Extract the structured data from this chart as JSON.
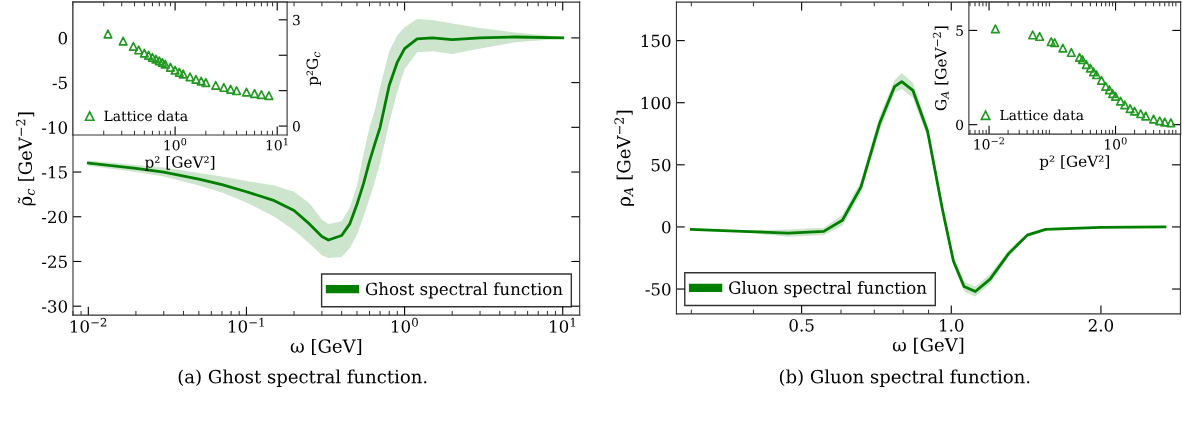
{
  "chart_data": [
    {
      "type": "line",
      "xlabel": "ω [GeV]",
      "ylabel": "ρ̃$_{c}$ [GeV$^{−2}$]",
      "log": "x",
      "xlim": [
        0.008,
        12.8
      ],
      "ylim": [
        -31,
        4
      ],
      "xticks": [
        {
          "value": 0.01,
          "label": "10$^{−2}$"
        },
        {
          "value": 0.1,
          "label": "10$^{−1}$"
        },
        {
          "value": 1,
          "label": "10$^{0}$"
        },
        {
          "value": 10,
          "label": "10$^{1}$"
        }
      ],
      "yticks": [
        -30,
        -25,
        -20,
        -15,
        -10,
        -5,
        0
      ],
      "grid": false,
      "legend": "bottom right",
      "annotations": [
        "(a) Ghost spectral function."
      ],
      "series": [
        {
          "name": "Ghost spectral function",
          "type": "line",
          "color": "#007f00",
          "x": [
            0.01,
            0.02,
            0.03,
            0.05,
            0.07,
            0.1,
            0.15,
            0.2,
            0.25,
            0.3,
            0.33,
            0.4,
            0.45,
            0.5,
            0.55,
            0.6,
            0.65,
            0.7,
            0.8,
            0.9,
            1.0,
            1.2,
            1.5,
            2,
            3,
            5,
            10
          ],
          "values": [
            -14,
            -14.6,
            -15.0,
            -15.8,
            -16.4,
            -17.2,
            -18.2,
            -19.3,
            -20.8,
            -22.2,
            -22.6,
            -22.1,
            -20.8,
            -18.6,
            -16.3,
            -13.8,
            -11.8,
            -10,
            -5.3,
            -2.7,
            -1.2,
            -0.1,
            0,
            -0.2,
            0,
            0.1,
            0
          ],
          "lower": [
            -14.3,
            -15.0,
            -15.5,
            -16.5,
            -17.3,
            -18.4,
            -20.0,
            -21.5,
            -23.0,
            -24.3,
            -24.6,
            -24.5,
            -23.5,
            -22,
            -20,
            -18,
            -16,
            -14,
            -9.5,
            -6,
            -3.5,
            -1.6,
            -1.5,
            -1.8,
            -1.2,
            -0.5,
            -0.1
          ],
          "upper": [
            -13.7,
            -14.2,
            -14.5,
            -15.1,
            -15.5,
            -16.0,
            -16.5,
            -17.2,
            -18.5,
            -20.3,
            -20.8,
            -20.5,
            -19,
            -16.5,
            -13,
            -10,
            -8,
            -5.5,
            -1.5,
            0.3,
            1.2,
            2.1,
            2.0,
            1.6,
            1.1,
            0.6,
            0.1
          ]
        }
      ]
    },
    {
      "type": "scatter",
      "xlabel": "p² [GeV²]",
      "y2label": "p²G$_{c}$",
      "log": "x",
      "xlim": [
        0.1,
        12.5
      ],
      "y2lim": [
        -0.25,
        3.5
      ],
      "xticks": [
        {
          "value": 1,
          "label": "10$^{0}$"
        },
        {
          "value": 10,
          "label": "10$^{1}$"
        }
      ],
      "y2ticks": [
        0,
        {
          "value": 1,
          "label": null
        },
        {
          "value": 2,
          "label": null
        },
        3
      ],
      "grid": false,
      "legend": "bottom left",
      "marker": "triangle",
      "series": [
        {
          "name": "Lattice data",
          "type": "scatter",
          "axis": "y2",
          "color": "#229a22",
          "x": [
            0.22,
            0.31,
            0.39,
            0.44,
            0.5,
            0.55,
            0.6,
            0.65,
            0.7,
            0.75,
            0.8,
            0.9,
            1.0,
            1.1,
            1.2,
            1.4,
            1.6,
            1.8,
            2.0,
            2.5,
            3.0,
            3.5,
            4.0,
            5.0,
            6.0,
            7.0,
            8.3
          ],
          "values": [
            2.6,
            2.4,
            2.25,
            2.15,
            2.06,
            2.0,
            1.94,
            1.89,
            1.84,
            1.8,
            1.75,
            1.66,
            1.58,
            1.52,
            1.47,
            1.39,
            1.32,
            1.27,
            1.23,
            1.15,
            1.09,
            1.04,
            1.0,
            0.96,
            0.92,
            0.89,
            0.86
          ]
        }
      ]
    },
    {
      "type": "line",
      "xlabel": "ω [GeV]",
      "ylabel": "ρ$_{A}$ [GeV$^{−2}$]",
      "log": "x",
      "xlim": [
        0.28,
        2.89
      ],
      "ylim": [
        -70,
        181
      ],
      "xticks": [
        0.5,
        {
          "value": 1,
          "label": "1.0"
        },
        {
          "value": 2,
          "label": "2.0"
        }
      ],
      "yticks": [
        -50,
        0,
        50,
        100,
        150
      ],
      "grid": false,
      "legend": "bottom left",
      "annotations": [
        "(b) Gluon spectral function."
      ],
      "series": [
        {
          "name": "Gluon spectral function",
          "type": "line",
          "color": "#007f00",
          "x": [
            0.3,
            0.38,
            0.47,
            0.554,
            0.604,
            0.658,
            0.717,
            0.769,
            0.795,
            0.837,
            0.896,
            0.96,
            1.01,
            1.061,
            1.118,
            1.197,
            1.304,
            1.422,
            1.548,
            2.0,
            2.69
          ],
          "values": [
            -2,
            -3.5,
            -5,
            -3.6,
            5.4,
            32,
            83,
            113,
            117,
            110,
            77,
            14,
            -27.5,
            -48,
            -52,
            -42,
            -21.5,
            -6.6,
            -2,
            -0.3,
            0
          ],
          "lower": [
            -2.5,
            -4.3,
            -8,
            -6.5,
            1,
            27,
            77,
            108,
            111,
            104,
            72,
            10,
            -31,
            -52,
            -56,
            -46,
            -24,
            -8,
            -2.8,
            -0.5,
            0
          ],
          "upper": [
            -1.5,
            -2.7,
            -2,
            -0.7,
            9.5,
            37,
            89,
            118,
            124,
            116,
            82,
            18,
            -24,
            -44,
            -48,
            -38,
            -19,
            -5,
            -1.2,
            -0.1,
            0
          ]
        }
      ]
    },
    {
      "type": "scatter",
      "xlabel": "p² [GeV²]",
      "ylabel": "G$_{A}$ [GeV$^{−2}$]",
      "log": "x",
      "xlim": [
        0.0048,
        10.7
      ],
      "ylim": [
        -0.5,
        6.5
      ],
      "xticks": [
        {
          "value": 0.01,
          "label": "10$^{−2}$"
        },
        {
          "value": 1,
          "label": "10$^{0}$"
        }
      ],
      "yticks": [
        0,
        5
      ],
      "grid": false,
      "legend": "bottom left",
      "marker": "triangle",
      "series": [
        {
          "name": "Lattice data",
          "type": "scatter",
          "color": "#229a22",
          "x": [
            0.0126,
            0.049,
            0.063,
            0.096,
            0.109,
            0.147,
            0.2,
            0.27,
            0.3,
            0.345,
            0.4,
            0.45,
            0.5,
            0.6,
            0.7,
            0.8,
            0.9,
            1.0,
            1.2,
            1.4,
            1.7,
            2.0,
            2.5,
            3.0,
            4.0,
            5.0,
            6.0,
            7.5
          ],
          "values": [
            5.08,
            4.76,
            4.68,
            4.4,
            4.35,
            4.06,
            3.83,
            3.57,
            3.45,
            3.19,
            3.0,
            2.8,
            2.65,
            2.35,
            2.03,
            1.85,
            1.65,
            1.5,
            1.25,
            1.05,
            0.85,
            0.72,
            0.58,
            0.46,
            0.3,
            0.2,
            0.14,
            0.1
          ]
        }
      ]
    }
  ]
}
